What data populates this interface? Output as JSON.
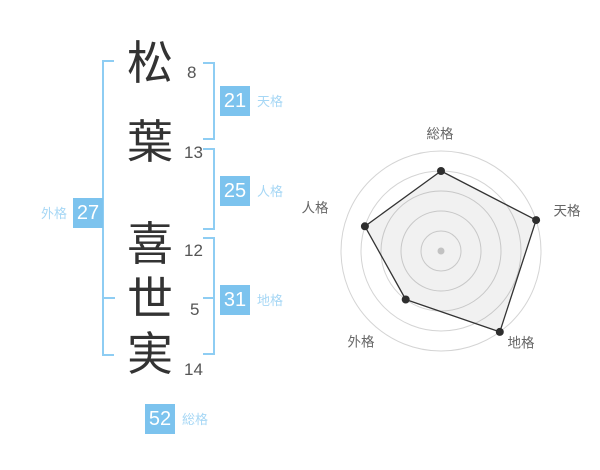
{
  "name_panel": {
    "characters": [
      {
        "char": "松",
        "strokes": 8
      },
      {
        "char": "葉",
        "strokes": 13
      },
      {
        "char": "喜",
        "strokes": 12
      },
      {
        "char": "世",
        "strokes": 5
      },
      {
        "char": "実",
        "strokes": 14
      }
    ],
    "kaku": {
      "tenkaku": {
        "label": "天格",
        "value": 21
      },
      "jinkaku": {
        "label": "人格",
        "value": 25
      },
      "chikaku": {
        "label": "地格",
        "value": 31
      },
      "gaikaku": {
        "label": "外格",
        "value": 27
      },
      "soukaku": {
        "label": "総格",
        "value": 52
      }
    }
  },
  "chart_data": {
    "type": "radar",
    "title": "",
    "labels": [
      "総格",
      "天格",
      "地格",
      "外格",
      "人格"
    ],
    "values": [
      4,
      5,
      5,
      3,
      4
    ],
    "max": 5,
    "rings": 5,
    "start_angle_deg": 90,
    "direction": "clockwise",
    "grid": "circular-rings",
    "legend": "none"
  },
  "colors": {
    "accent_blue": "#7cc3ee",
    "label_blue": "#a6d7f5",
    "bracket_blue": "#8ecdf3",
    "kanji_dark": "#333333",
    "strokes_gray": "#555555",
    "radar_grid": "#d4d4d4",
    "radar_label": "#666666",
    "radar_line": "#333333",
    "radar_fill": "rgba(0,0,0,0.055)",
    "radar_dot": "#2e2e2e",
    "radar_center_dot": "#c2c2c2"
  }
}
